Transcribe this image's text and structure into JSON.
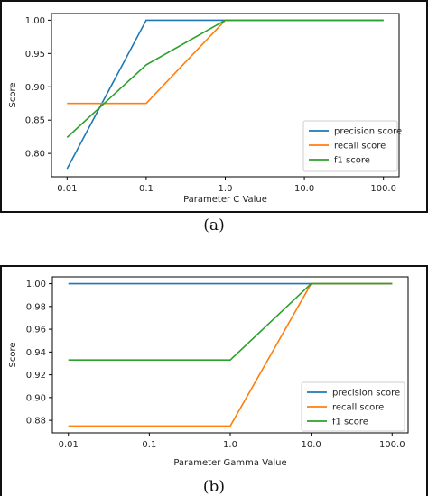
{
  "chart_data": [
    {
      "type": "line",
      "caption": "(a)",
      "xlabel": "Parameter C Value",
      "ylabel": "Score",
      "categories": [
        "0.01",
        "0.1",
        "1.0",
        "10.0",
        "100.0"
      ],
      "x": [
        0.01,
        0.1,
        1.0,
        10.0,
        100.0
      ],
      "xscale": "log",
      "ylim": [
        0.765,
        1.01
      ],
      "yticks": [
        "0.80",
        "0.85",
        "0.90",
        "0.95",
        "1.00"
      ],
      "ytick_values": [
        0.8,
        0.85,
        0.9,
        0.95,
        1.0
      ],
      "grid": false,
      "legend_position": "bottom-right",
      "series": [
        {
          "name": "precision score",
          "color": "#1f77b4",
          "values": [
            0.777,
            1.0,
            1.0,
            1.0,
            1.0
          ]
        },
        {
          "name": "recall score",
          "color": "#ff7f0e",
          "values": [
            0.875,
            0.875,
            1.0,
            1.0,
            1.0
          ]
        },
        {
          "name": "f1 score",
          "color": "#2ca02c",
          "values": [
            0.824,
            0.933,
            1.0,
            1.0,
            1.0
          ]
        }
      ]
    },
    {
      "type": "line",
      "caption": "(b)",
      "xlabel": "Parameter Gamma Value",
      "ylabel": "Score",
      "categories": [
        "0.01",
        "0.1",
        "1.0",
        "10.0",
        "100.0"
      ],
      "x": [
        0.01,
        0.1,
        1.0,
        10.0,
        100.0
      ],
      "xscale": "log",
      "ylim": [
        0.869,
        1.006
      ],
      "yticks": [
        "0.88",
        "0.90",
        "0.92",
        "0.94",
        "0.96",
        "0.98",
        "1.00"
      ],
      "ytick_values": [
        0.88,
        0.9,
        0.92,
        0.94,
        0.96,
        0.98,
        1.0
      ],
      "grid": false,
      "legend_position": "bottom-right",
      "series": [
        {
          "name": "precision score",
          "color": "#1f77b4",
          "values": [
            1.0,
            1.0,
            1.0,
            1.0,
            1.0
          ]
        },
        {
          "name": "recall score",
          "color": "#ff7f0e",
          "values": [
            0.875,
            0.875,
            0.875,
            1.0,
            1.0
          ]
        },
        {
          "name": "f1 score",
          "color": "#2ca02c",
          "values": [
            0.933,
            0.933,
            0.933,
            1.0,
            1.0
          ]
        }
      ]
    }
  ]
}
